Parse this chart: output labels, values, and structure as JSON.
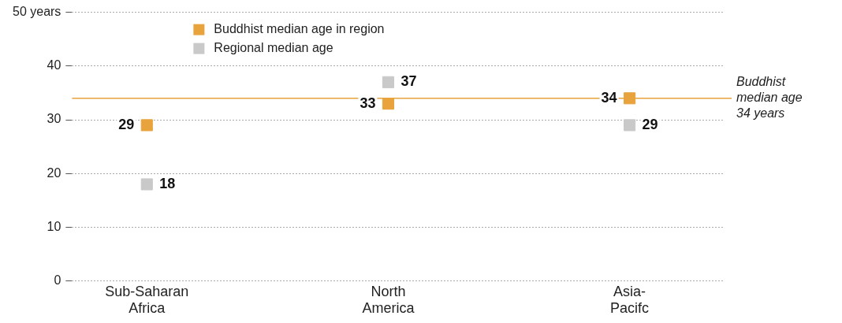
{
  "chart_data": {
    "type": "scatter",
    "categories": [
      "Sub-Saharan Africa",
      "North America",
      "Asia-Pacifc"
    ],
    "series": [
      {
        "name": "Buddhist median age in region",
        "color": "#e8a33d",
        "x": [
          "Sub-Saharan Africa",
          "North America",
          "Asia-Pacifc"
        ],
        "values": [
          29,
          33,
          34
        ]
      },
      {
        "name": "Regional median age",
        "color": "#c9c9c9",
        "x": [
          "Sub-Saharan Africa",
          "North America",
          "Asia-Pacifc"
        ],
        "values": [
          18,
          37,
          29
        ]
      }
    ],
    "ylim": [
      0,
      50
    ],
    "yticks": [
      0,
      10,
      20,
      30,
      40,
      {
        "value": 50,
        "label": "50 years"
      }
    ],
    "grid": "y",
    "marker": "square",
    "legend": "top",
    "data_labels": true,
    "ref_lines": [
      {
        "axis": "y",
        "value": 34,
        "label": "Buddhist median age 34 years",
        "color": "#e8a33d"
      }
    ]
  }
}
